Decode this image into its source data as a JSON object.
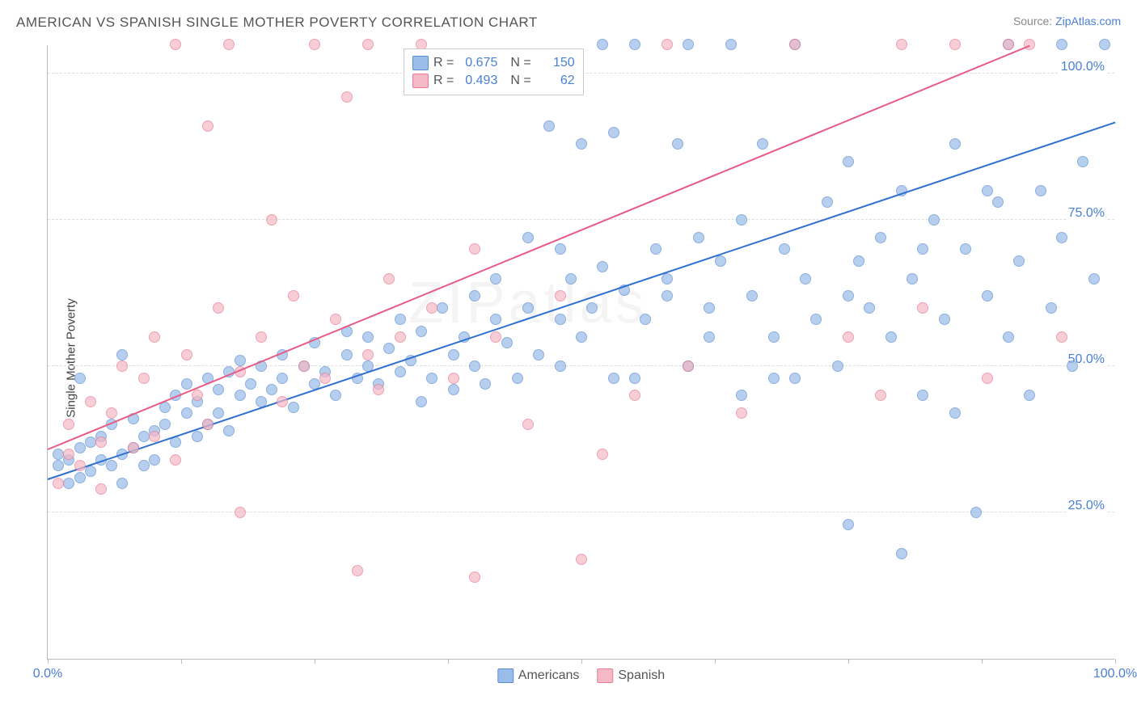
{
  "header": {
    "title": "AMERICAN VS SPANISH SINGLE MOTHER POVERTY CORRELATION CHART",
    "source_prefix": "Source: ",
    "source_link": "ZipAtlas.com"
  },
  "chart": {
    "type": "scatter",
    "ylabel_text": "Single Mother Poverty",
    "watermark": "ZIPatlas",
    "xlim": [
      0,
      100
    ],
    "ylim": [
      0,
      105
    ],
    "x_ticks": [
      0,
      12.5,
      25,
      37.5,
      50,
      62.5,
      75,
      87.5,
      100
    ],
    "x_tick_labels": {
      "0": "0.0%",
      "100": "100.0%"
    },
    "y_gridlines": [
      25,
      50,
      75,
      100
    ],
    "y_tick_labels": {
      "25": "25.0%",
      "50": "50.0%",
      "75": "75.0%",
      "100": "100.0%"
    },
    "grid_color": "#dddddd",
    "axis_color": "#bbbbbb",
    "background_color": "#ffffff",
    "tick_label_color": "#4a7fd6",
    "marker_radius": 7,
    "marker_stroke_width": 1,
    "marker_fill_opacity": 0.35,
    "series": [
      {
        "name": "Americans",
        "fill_color": "#9abce8",
        "stroke_color": "#5a8ed0",
        "line_color": "#2e6fd0",
        "r_value": "0.675",
        "n_value": "150",
        "trend": {
          "x1": 0,
          "y1": 31,
          "x2": 100,
          "y2": 92
        },
        "points": [
          [
            1,
            33
          ],
          [
            1,
            35
          ],
          [
            2,
            30
          ],
          [
            2,
            34
          ],
          [
            3,
            36
          ],
          [
            3,
            31
          ],
          [
            4,
            32
          ],
          [
            4,
            37
          ],
          [
            5,
            34
          ],
          [
            5,
            38
          ],
          [
            6,
            33
          ],
          [
            6,
            40
          ],
          [
            7,
            35
          ],
          [
            7,
            30
          ],
          [
            8,
            36
          ],
          [
            8,
            41
          ],
          [
            9,
            33
          ],
          [
            9,
            38
          ],
          [
            10,
            39
          ],
          [
            10,
            34
          ],
          [
            11,
            40
          ],
          [
            11,
            43
          ],
          [
            12,
            37
          ],
          [
            12,
            45
          ],
          [
            13,
            42
          ],
          [
            13,
            47
          ],
          [
            14,
            38
          ],
          [
            14,
            44
          ],
          [
            15,
            40
          ],
          [
            15,
            48
          ],
          [
            16,
            46
          ],
          [
            16,
            42
          ],
          [
            17,
            49
          ],
          [
            17,
            39
          ],
          [
            18,
            45
          ],
          [
            18,
            51
          ],
          [
            19,
            47
          ],
          [
            20,
            44
          ],
          [
            20,
            50
          ],
          [
            21,
            46
          ],
          [
            22,
            52
          ],
          [
            22,
            48
          ],
          [
            23,
            43
          ],
          [
            24,
            50
          ],
          [
            25,
            47
          ],
          [
            25,
            54
          ],
          [
            26,
            49
          ],
          [
            27,
            45
          ],
          [
            28,
            52
          ],
          [
            28,
            56
          ],
          [
            29,
            48
          ],
          [
            30,
            55
          ],
          [
            30,
            50
          ],
          [
            31,
            47
          ],
          [
            32,
            53
          ],
          [
            33,
            58
          ],
          [
            33,
            49
          ],
          [
            34,
            51
          ],
          [
            35,
            56
          ],
          [
            35,
            44
          ],
          [
            36,
            48
          ],
          [
            37,
            60
          ],
          [
            38,
            52
          ],
          [
            38,
            46
          ],
          [
            39,
            55
          ],
          [
            40,
            62
          ],
          [
            40,
            50
          ],
          [
            41,
            47
          ],
          [
            42,
            58
          ],
          [
            43,
            54
          ],
          [
            44,
            48
          ],
          [
            45,
            72
          ],
          [
            45,
            60
          ],
          [
            46,
            52
          ],
          [
            47,
            91
          ],
          [
            48,
            58
          ],
          [
            48,
            50
          ],
          [
            49,
            65
          ],
          [
            50,
            88
          ],
          [
            50,
            55
          ],
          [
            51,
            60
          ],
          [
            52,
            67
          ],
          [
            53,
            90
          ],
          [
            53,
            48
          ],
          [
            54,
            63
          ],
          [
            55,
            105
          ],
          [
            56,
            58
          ],
          [
            57,
            70
          ],
          [
            58,
            65
          ],
          [
            59,
            88
          ],
          [
            60,
            50
          ],
          [
            60,
            105
          ],
          [
            61,
            72
          ],
          [
            62,
            60
          ],
          [
            63,
            68
          ],
          [
            64,
            105
          ],
          [
            65,
            45
          ],
          [
            65,
            75
          ],
          [
            66,
            62
          ],
          [
            67,
            88
          ],
          [
            68,
            55
          ],
          [
            69,
            70
          ],
          [
            70,
            48
          ],
          [
            70,
            105
          ],
          [
            71,
            65
          ],
          [
            72,
            58
          ],
          [
            73,
            78
          ],
          [
            74,
            50
          ],
          [
            75,
            85
          ],
          [
            75,
            23
          ],
          [
            76,
            68
          ],
          [
            77,
            60
          ],
          [
            78,
            72
          ],
          [
            79,
            55
          ],
          [
            80,
            80
          ],
          [
            80,
            18
          ],
          [
            81,
            65
          ],
          [
            82,
            45
          ],
          [
            83,
            75
          ],
          [
            84,
            58
          ],
          [
            85,
            88
          ],
          [
            85,
            42
          ],
          [
            86,
            70
          ],
          [
            87,
            25
          ],
          [
            88,
            62
          ],
          [
            89,
            78
          ],
          [
            90,
            55
          ],
          [
            90,
            105
          ],
          [
            91,
            68
          ],
          [
            92,
            45
          ],
          [
            93,
            80
          ],
          [
            94,
            60
          ],
          [
            95,
            105
          ],
          [
            95,
            72
          ],
          [
            96,
            50
          ],
          [
            97,
            85
          ],
          [
            98,
            65
          ],
          [
            99,
            105
          ],
          [
            3,
            48
          ],
          [
            7,
            52
          ],
          [
            52,
            105
          ],
          [
            58,
            62
          ],
          [
            42,
            65
          ],
          [
            48,
            70
          ],
          [
            55,
            48
          ],
          [
            62,
            55
          ],
          [
            68,
            48
          ],
          [
            75,
            62
          ],
          [
            82,
            70
          ],
          [
            88,
            80
          ]
        ]
      },
      {
        "name": "Spanish",
        "fill_color": "#f5b8c5",
        "stroke_color": "#e87a95",
        "line_color": "#e85a85",
        "r_value": "0.493",
        "n_value": "62",
        "trend": {
          "x1": 0,
          "y1": 36,
          "x2": 92,
          "y2": 105
        },
        "points": [
          [
            1,
            30
          ],
          [
            2,
            40
          ],
          [
            2,
            35
          ],
          [
            3,
            33
          ],
          [
            4,
            44
          ],
          [
            5,
            37
          ],
          [
            5,
            29
          ],
          [
            6,
            42
          ],
          [
            7,
            50
          ],
          [
            8,
            36
          ],
          [
            9,
            48
          ],
          [
            10,
            55
          ],
          [
            10,
            38
          ],
          [
            12,
            105
          ],
          [
            12,
            34
          ],
          [
            13,
            52
          ],
          [
            14,
            45
          ],
          [
            15,
            91
          ],
          [
            15,
            40
          ],
          [
            16,
            60
          ],
          [
            17,
            105
          ],
          [
            18,
            49
          ],
          [
            18,
            25
          ],
          [
            20,
            55
          ],
          [
            21,
            75
          ],
          [
            22,
            44
          ],
          [
            23,
            62
          ],
          [
            24,
            50
          ],
          [
            25,
            105
          ],
          [
            26,
            48
          ],
          [
            27,
            58
          ],
          [
            28,
            96
          ],
          [
            29,
            15
          ],
          [
            30,
            52
          ],
          [
            30,
            105
          ],
          [
            31,
            46
          ],
          [
            32,
            65
          ],
          [
            33,
            55
          ],
          [
            35,
            105
          ],
          [
            36,
            60
          ],
          [
            38,
            48
          ],
          [
            40,
            14
          ],
          [
            40,
            70
          ],
          [
            42,
            55
          ],
          [
            45,
            40
          ],
          [
            48,
            62
          ],
          [
            50,
            17
          ],
          [
            52,
            35
          ],
          [
            55,
            45
          ],
          [
            58,
            105
          ],
          [
            60,
            50
          ],
          [
            65,
            42
          ],
          [
            70,
            105
          ],
          [
            75,
            55
          ],
          [
            78,
            45
          ],
          [
            80,
            105
          ],
          [
            82,
            60
          ],
          [
            85,
            105
          ],
          [
            88,
            48
          ],
          [
            90,
            105
          ],
          [
            92,
            105
          ],
          [
            95,
            55
          ]
        ]
      }
    ],
    "stats_legend": {
      "r_label": "R =",
      "n_label": "N ="
    },
    "bottom_legend": {
      "item1": "Americans",
      "item2": "Spanish"
    }
  }
}
